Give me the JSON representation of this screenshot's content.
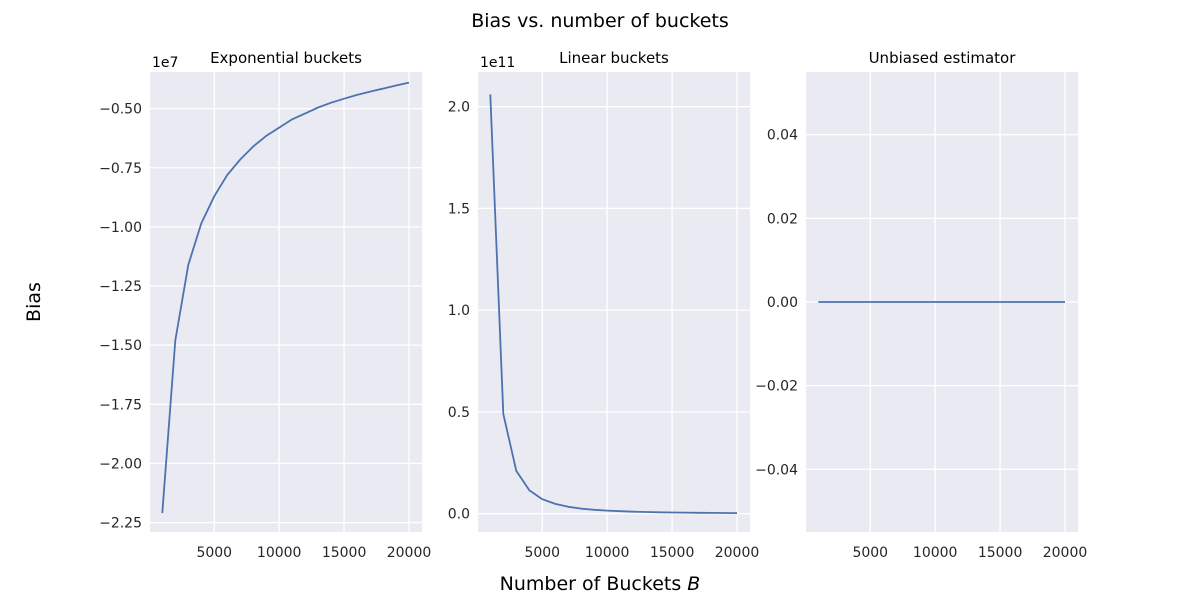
{
  "figure": {
    "suptitle": "Bias vs. number of buckets",
    "xlabel_text": "Number of Buckets ",
    "xlabel_symbol": "B",
    "ylabel": "Bias"
  },
  "style": {
    "panel_bg": "#eaeaf2",
    "grid": "#ffffff",
    "line": "#4c72b0"
  },
  "chart_data": [
    {
      "type": "line",
      "title": "Exponential buckets",
      "xlabel": "Number of Buckets B",
      "ylabel": "Bias",
      "offset_label": "1e7",
      "xlim": [
        50,
        21000
      ],
      "ylim": [
        -22.9,
        -3.45
      ],
      "grid": true,
      "x": [
        1000,
        2000,
        3000,
        4000,
        5000,
        6000,
        7000,
        8000,
        9000,
        10000,
        11000,
        12000,
        13000,
        14000,
        15000,
        16000,
        17000,
        18000,
        19000,
        20000
      ],
      "y": [
        -22.1,
        -14.8,
        -11.6,
        -9.85,
        -8.7,
        -7.8,
        -7.15,
        -6.6,
        -6.15,
        -5.8,
        -5.45,
        -5.2,
        -4.95,
        -4.75,
        -4.58,
        -4.42,
        -4.28,
        -4.15,
        -4.02,
        -3.9
      ],
      "xticks": [
        5000,
        10000,
        15000,
        20000
      ],
      "xtick_labels": [
        "5000",
        "10000",
        "15000",
        "20000"
      ],
      "yticks": [
        -5.0,
        -7.5,
        -10.0,
        -12.5,
        -15.0,
        -17.5,
        -20.0,
        -22.5
      ],
      "ytick_labels": [
        "−0.50",
        "−0.75",
        "−1.00",
        "−1.25",
        "−1.50",
        "−1.75",
        "−2.00",
        "−2.25"
      ]
    },
    {
      "type": "line",
      "title": "Linear buckets",
      "xlabel": "Number of Buckets B",
      "offset_label": "1e11",
      "xlim": [
        50,
        21000
      ],
      "ylim": [
        -0.09,
        2.17
      ],
      "grid": true,
      "x": [
        1000,
        2000,
        3000,
        4000,
        5000,
        6000,
        7000,
        8000,
        9000,
        10000,
        11000,
        12000,
        13000,
        14000,
        15000,
        16000,
        17000,
        18000,
        19000,
        20000
      ],
      "y": [
        2.06,
        0.49,
        0.21,
        0.115,
        0.071,
        0.048,
        0.034,
        0.025,
        0.019,
        0.015,
        0.012,
        0.0098,
        0.0082,
        0.0069,
        0.0059,
        0.0051,
        0.0044,
        0.0039,
        0.0034,
        0.003
      ],
      "xticks": [
        5000,
        10000,
        15000,
        20000
      ],
      "xtick_labels": [
        "5000",
        "10000",
        "15000",
        "20000"
      ],
      "yticks": [
        0.0,
        0.5,
        1.0,
        1.5,
        2.0
      ],
      "ytick_labels": [
        "0.0",
        "0.5",
        "1.0",
        "1.5",
        "2.0"
      ]
    },
    {
      "type": "line",
      "title": "Unbiased estimator",
      "xlabel": "Number of Buckets B",
      "offset_label": "",
      "xlim": [
        50,
        21000
      ],
      "ylim": [
        -0.055,
        0.055
      ],
      "grid": true,
      "x": [
        1000,
        2000,
        3000,
        4000,
        5000,
        6000,
        7000,
        8000,
        9000,
        10000,
        11000,
        12000,
        13000,
        14000,
        15000,
        16000,
        17000,
        18000,
        19000,
        20000
      ],
      "y": [
        0,
        0,
        0,
        0,
        0,
        0,
        0,
        0,
        0,
        0,
        0,
        0,
        0,
        0,
        0,
        0,
        0,
        0,
        0,
        0
      ],
      "xticks": [
        5000,
        10000,
        15000,
        20000
      ],
      "xtick_labels": [
        "5000",
        "10000",
        "15000",
        "20000"
      ],
      "yticks": [
        0.04,
        0.02,
        0.0,
        -0.02,
        -0.04
      ],
      "ytick_labels": [
        "0.04",
        "0.02",
        "0.00",
        "−0.02",
        "−0.04"
      ]
    }
  ]
}
